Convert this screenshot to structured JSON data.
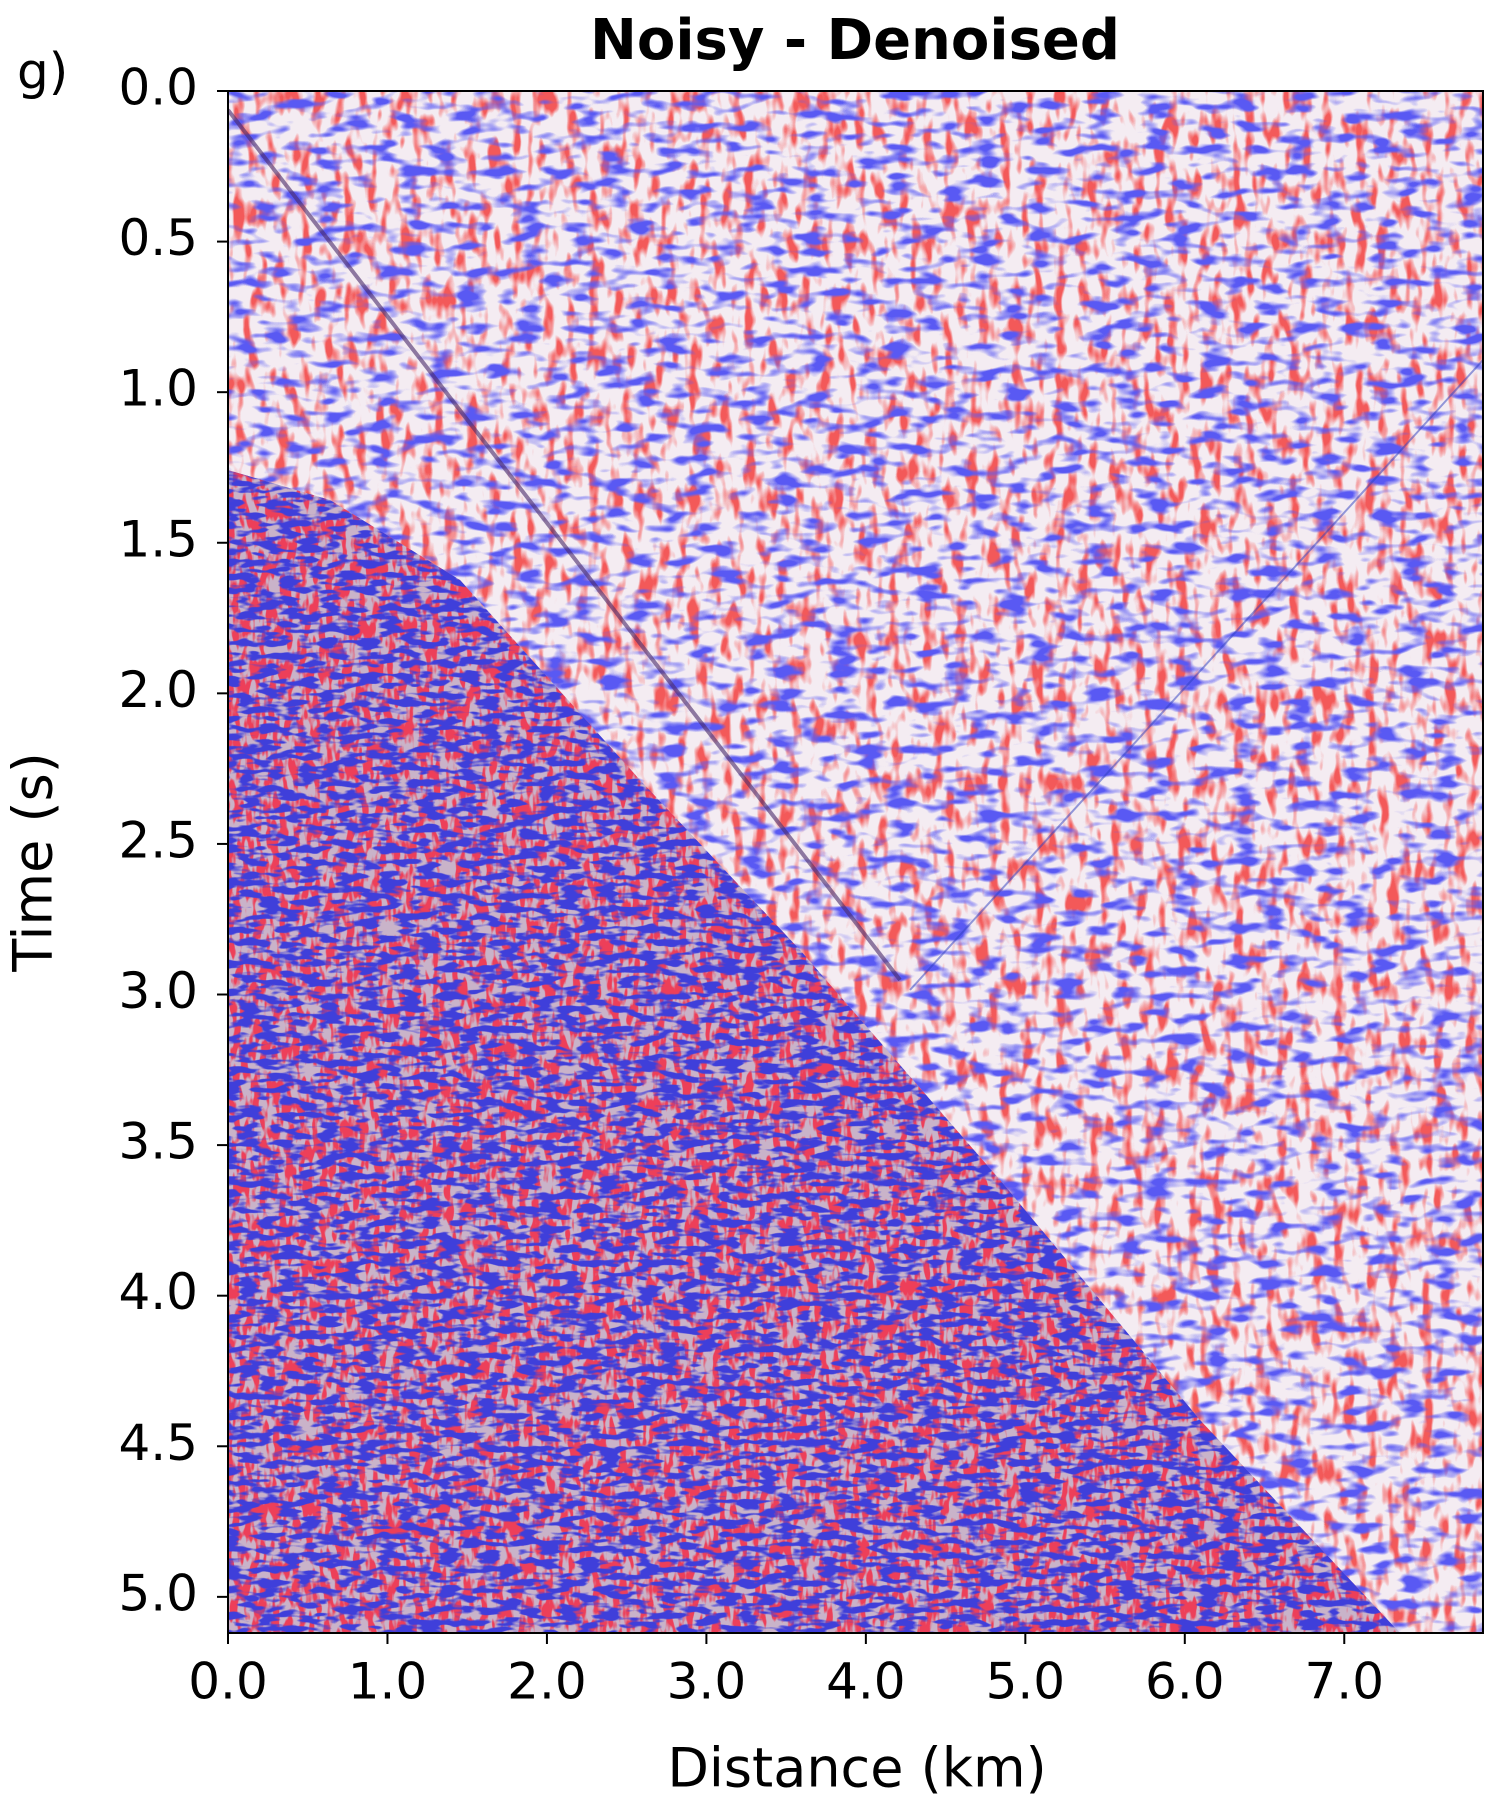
{
  "chart_data": {
    "type": "heatmap",
    "panel_label": "g)",
    "title": "Noisy - Denoised",
    "x_label": "Distance (km)",
    "y_label": "Time (s)",
    "xlim": [
      0,
      7.87
    ],
    "ylim": [
      5.12,
      0
    ],
    "xticks": [
      {
        "value": 0,
        "label": "0.0"
      },
      {
        "value": 1,
        "label": "1.0"
      },
      {
        "value": 2,
        "label": "2.0"
      },
      {
        "value": 3,
        "label": "3.0"
      },
      {
        "value": 4,
        "label": "4.0"
      },
      {
        "value": 5,
        "label": "5.0"
      },
      {
        "value": 6,
        "label": "6.0"
      },
      {
        "value": 7,
        "label": "7.0"
      }
    ],
    "yticks": [
      {
        "value": 0,
        "label": "0.0"
      },
      {
        "value": 0.5,
        "label": "0.5"
      },
      {
        "value": 1,
        "label": "1.0"
      },
      {
        "value": 1.5,
        "label": "1.5"
      },
      {
        "value": 2,
        "label": "2.0"
      },
      {
        "value": 2.5,
        "label": "2.5"
      },
      {
        "value": 3,
        "label": "3.0"
      },
      {
        "value": 3.5,
        "label": "3.5"
      },
      {
        "value": 4,
        "label": "4.0"
      },
      {
        "value": 4.5,
        "label": "4.5"
      },
      {
        "value": 5,
        "label": "5.0"
      }
    ]
  }
}
